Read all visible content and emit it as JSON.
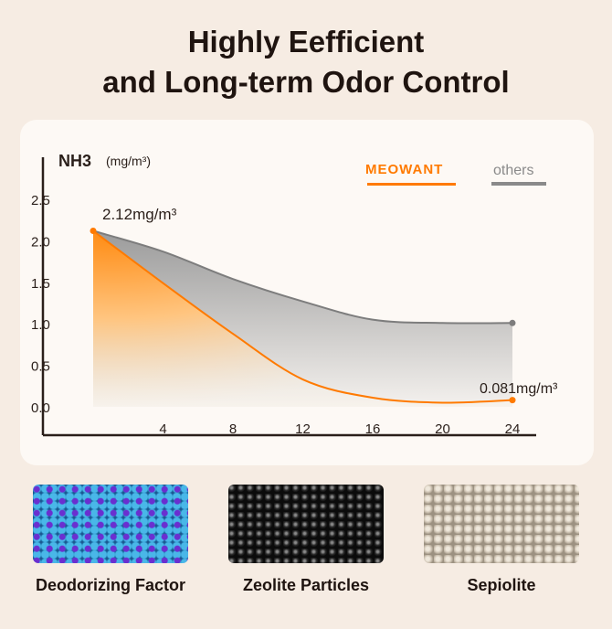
{
  "title_line1": "Highly Eefficient",
  "title_line2": "and Long-term Odor Control",
  "chart_data": {
    "type": "line",
    "ylabel": "NH3",
    "yunit": "(mg/m³)",
    "x": [
      0,
      4,
      8,
      12,
      16,
      20,
      24
    ],
    "xticks": [
      "4",
      "8",
      "12",
      "16",
      "20",
      "24"
    ],
    "yticks": [
      "0.0",
      "0.5",
      "1.0",
      "1.5",
      "2.0",
      "2.5"
    ],
    "ylim": [
      0,
      2.5
    ],
    "xlim": [
      0,
      24
    ],
    "series": [
      {
        "name": "MEOWANT",
        "color": "#ff7a00",
        "values": [
          2.12,
          1.49,
          0.88,
          0.33,
          0.11,
          0.05,
          0.081
        ]
      },
      {
        "name": "others",
        "color": "#8a8a8a",
        "values": [
          2.12,
          1.87,
          1.54,
          1.27,
          1.05,
          1.01,
          1.01
        ]
      }
    ],
    "annotations": {
      "start": "2.12mg/m³",
      "end": "0.081mg/m³"
    },
    "legend": "top-right"
  },
  "materials": [
    {
      "label": "Deodorizing Factor"
    },
    {
      "label": "Zeolite Particles"
    },
    {
      "label": "Sepiolite"
    }
  ]
}
